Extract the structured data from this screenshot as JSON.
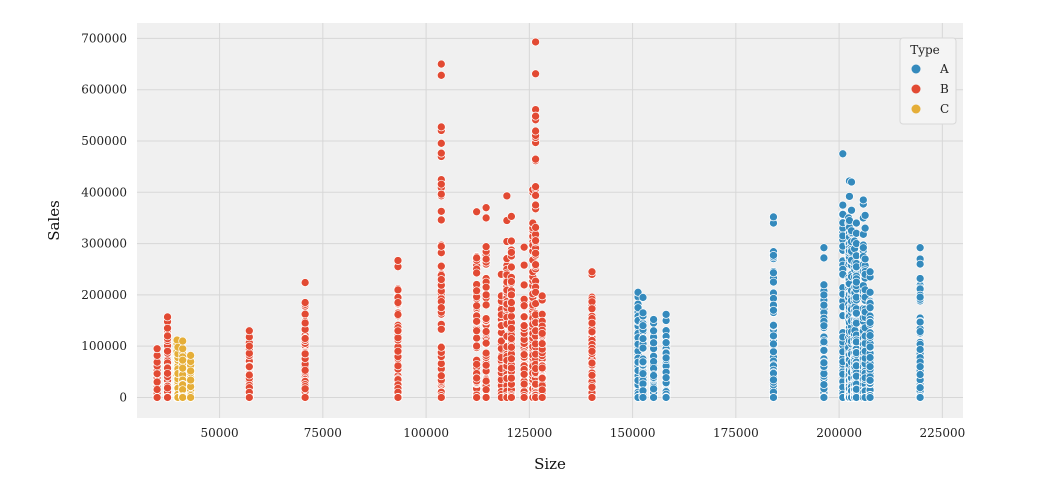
{
  "chart_data": {
    "type": "scatter",
    "title": "",
    "xlabel": "Size",
    "ylabel": "Sales",
    "xlim": [
      30000,
      230000
    ],
    "ylim": [
      -40000,
      730000
    ],
    "xticks": [
      50000,
      75000,
      100000,
      125000,
      150000,
      175000,
      200000,
      225000
    ],
    "yticks": [
      0,
      100000,
      200000,
      300000,
      400000,
      500000,
      600000,
      700000
    ],
    "grid": true,
    "legend": {
      "title": "Type",
      "position": "top-right"
    },
    "series": [
      {
        "name": "A",
        "color": "#348ABD",
        "stores": [
          {
            "size": 151315,
            "max": 205000,
            "highlights": [
              196000,
              182000,
              175000,
              150000
            ]
          },
          {
            "size": 152513,
            "max": 195000,
            "highlights": [
              165000,
              140000
            ]
          },
          {
            "size": 155083,
            "max": 152000,
            "highlights": [
              145000,
              130000
            ]
          },
          {
            "size": 158114,
            "max": 162000,
            "highlights": [
              150000
            ]
          },
          {
            "size": 184109,
            "max": 352000,
            "highlights": [
              340000,
              225000,
              180000,
              170000
            ]
          },
          {
            "size": 196321,
            "max": 292000,
            "highlights": [
              272000,
              180000
            ]
          },
          {
            "size": 200898,
            "max": 475000,
            "highlights": [
              375000,
              357000,
              315000,
              295000,
              240000
            ]
          },
          {
            "size": 202307,
            "max": 350000,
            "highlights": [
              340000,
              300000,
              280000,
              260000
            ]
          },
          {
            "size": 202505,
            "max": 422000,
            "highlights": [
              392000,
              345000
            ]
          },
          {
            "size": 203007,
            "max": 420000,
            "highlights": [
              365000,
              325000,
              285000
            ]
          },
          {
            "size": 203742,
            "max": 305000,
            "highlights": [
              290000,
              255000,
              235000
            ]
          },
          {
            "size": 203819,
            "max": 262000,
            "highlights": [
              248000,
              215000
            ]
          },
          {
            "size": 204184,
            "max": 340000,
            "highlights": [
              320000,
              300000
            ]
          },
          {
            "size": 205863,
            "max": 385000,
            "highlights": [
              377000,
              350000,
              318000,
              292000
            ]
          },
          {
            "size": 206302,
            "max": 355000,
            "highlights": [
              330000,
              270000,
              240000
            ]
          },
          {
            "size": 207499,
            "max": 245000,
            "highlights": [
              235000,
              205000,
              175000
            ]
          },
          {
            "size": 219622,
            "max": 292000,
            "highlights": [
              270000,
              260000,
              232000
            ]
          }
        ]
      },
      {
        "name": "B",
        "color": "#E24A33",
        "stores": [
          {
            "size": 34875,
            "max": 95000,
            "highlights": [
              82000
            ]
          },
          {
            "size": 37392,
            "max": 157000,
            "highlights": [
              148000,
              135000,
              120000
            ]
          },
          {
            "size": 57197,
            "max": 130000,
            "highlights": [
              118000,
              100000
            ]
          },
          {
            "size": 70713,
            "max": 224000,
            "highlights": [
              185000,
              115000,
              85000
            ]
          },
          {
            "size": 93188,
            "max": 267000,
            "highlights": [
              255000,
              195000,
              185000,
              130000
            ]
          },
          {
            "size": 103681,
            "max": 650000,
            "highlights": [
              628000,
              230000,
              187000,
              175000,
              133000
            ]
          },
          {
            "size": 112238,
            "max": 362000,
            "highlights": [
              272000,
              208000,
              130000
            ]
          },
          {
            "size": 114533,
            "max": 370000,
            "highlights": [
              350000,
              225000,
              215000,
              200000
            ]
          },
          {
            "size": 118221,
            "max": 240000,
            "highlights": [
              198000,
              140000
            ]
          },
          {
            "size": 119557,
            "max": 393000,
            "highlights": [
              345000,
              225000,
              182000
            ]
          },
          {
            "size": 120653,
            "max": 353000,
            "highlights": [
              305000,
              200000,
              185000
            ]
          },
          {
            "size": 123737,
            "max": 293000,
            "highlights": [
              258000,
              140000
            ]
          },
          {
            "size": 125833,
            "max": 405000,
            "highlights": [
              400000,
              340000,
              297000,
              268000,
              245000
            ]
          },
          {
            "size": 126512,
            "max": 693000,
            "highlights": [
              631000,
              205000
            ]
          },
          {
            "size": 128107,
            "max": 198000,
            "highlights": [
              190000,
              125000,
              105000
            ]
          },
          {
            "size": 140167,
            "max": 245000,
            "highlights": [
              240000,
              173000,
              128000,
              90000
            ]
          }
        ]
      },
      {
        "name": "C",
        "color": "#E5AE38",
        "stores": [
          {
            "size": 39690,
            "max": 112000,
            "highlights": [
              105000,
              90000
            ]
          },
          {
            "size": 39910,
            "max": 98000,
            "highlights": [
              85000
            ]
          },
          {
            "size": 41062,
            "max": 110000,
            "highlights": [
              95000
            ]
          },
          {
            "size": 42988,
            "max": 82000,
            "highlights": [
              70000
            ]
          }
        ]
      }
    ]
  },
  "colors": {
    "plot_background": "#F0F0F0",
    "grid": "#D7D7D7"
  }
}
